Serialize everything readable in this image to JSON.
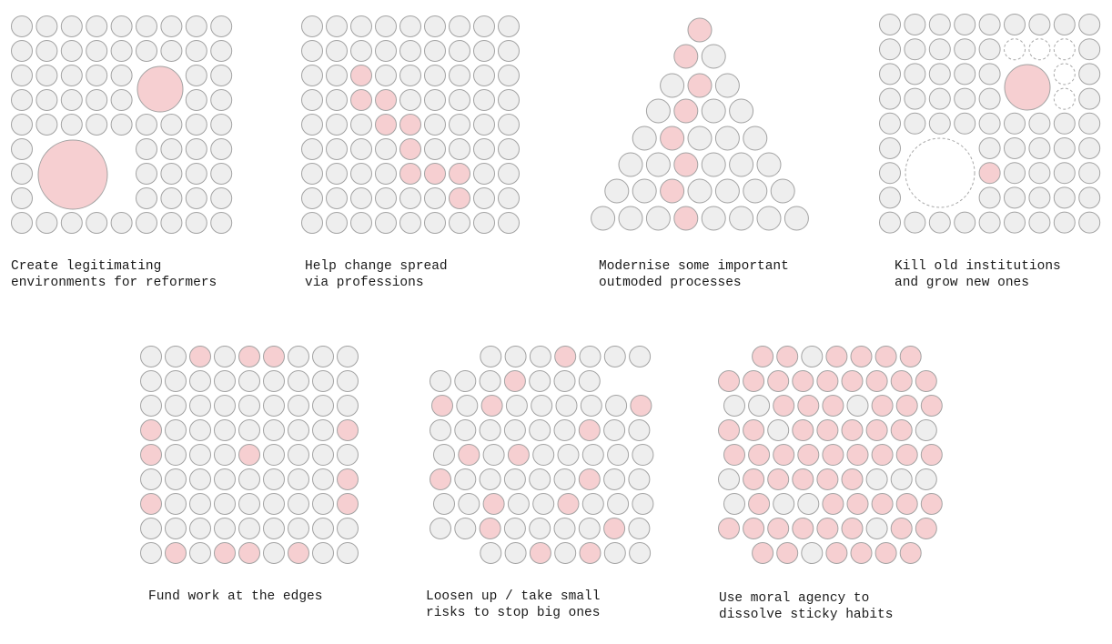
{
  "colors": {
    "neutral_fill": "#eeeeee",
    "accent_fill": "#f6cfd1",
    "stroke": "#a3a3a3",
    "ghost_stroke": "#a8a8a8"
  },
  "panels": [
    {
      "name": "create-legitimating-environments",
      "caption": [
        "Create legitimating",
        "environments for reformers"
      ]
    },
    {
      "name": "help-change-spread",
      "caption": [
        "Help change spread",
        "via professions"
      ]
    },
    {
      "name": "modernise-processes",
      "caption": [
        "Modernise some important",
        "outmoded processes"
      ]
    },
    {
      "name": "kill-old-institutions",
      "caption": [
        "Kill old institutions",
        "and grow new ones"
      ]
    },
    {
      "name": "fund-work-at-edges",
      "caption": [
        "Fund work at the edges"
      ]
    },
    {
      "name": "loosen-up",
      "caption": [
        "Loosen up / take small",
        "risks to stop big ones"
      ]
    },
    {
      "name": "use-moral-agency",
      "caption": [
        "Use moral agency to",
        "dissolve sticky habits"
      ]
    }
  ]
}
